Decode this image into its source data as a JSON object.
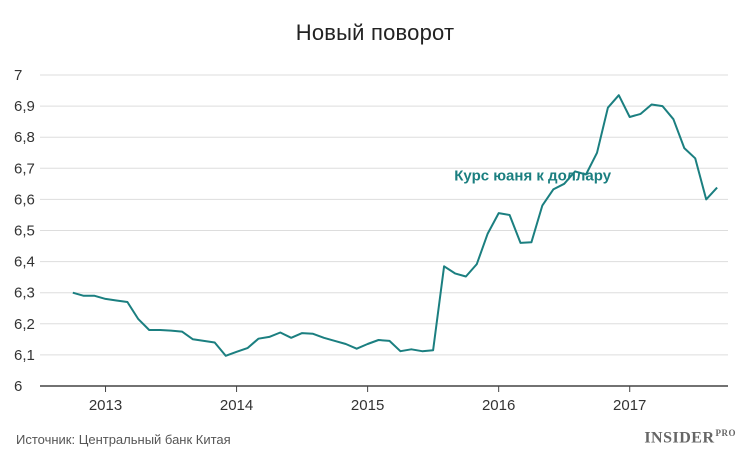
{
  "page": {
    "title": "Новый поворот",
    "source": "Источник: Центральный банк Китая",
    "logo_main": "INSIDER",
    "logo_sub": "PRO"
  },
  "colors": {
    "series": "#1b7f80",
    "axis": "#444444",
    "gridline": "#dddddd"
  },
  "chart_data": {
    "type": "line",
    "title": "Новый поворот",
    "xlabel": "",
    "ylabel": "",
    "ylim": [
      6,
      7
    ],
    "yticks": [
      6,
      6.1,
      6.2,
      6.3,
      6.4,
      6.5,
      6.6,
      6.7,
      6.8,
      6.9,
      7
    ],
    "ytick_labels": [
      "6",
      "6,1",
      "6,2",
      "6,3",
      "6,4",
      "6,5",
      "6,6",
      "6,7",
      "6,8",
      "6,9",
      "7"
    ],
    "xlim": [
      "2012-07",
      "2017-10"
    ],
    "xticks": [
      "2013",
      "2014",
      "2015",
      "2016",
      "2017"
    ],
    "grid": "horizontal",
    "series": [
      {
        "name": "Курс юаня к доллару",
        "x": [
          "2012-10",
          "2012-11",
          "2012-12",
          "2013-01",
          "2013-02",
          "2013-03",
          "2013-04",
          "2013-05",
          "2013-06",
          "2013-07",
          "2013-08",
          "2013-09",
          "2013-10",
          "2013-11",
          "2013-12",
          "2014-01",
          "2014-02",
          "2014-03",
          "2014-04",
          "2014-05",
          "2014-06",
          "2014-07",
          "2014-08",
          "2014-09",
          "2014-10",
          "2014-11",
          "2014-12",
          "2015-01",
          "2015-02",
          "2015-03",
          "2015-04",
          "2015-05",
          "2015-06",
          "2015-07",
          "2015-08",
          "2015-09",
          "2015-10",
          "2015-11",
          "2015-12",
          "2016-01",
          "2016-02",
          "2016-03",
          "2016-04",
          "2016-05",
          "2016-06",
          "2016-07",
          "2016-08",
          "2016-09",
          "2016-10",
          "2016-11",
          "2016-12",
          "2017-01",
          "2017-02",
          "2017-03",
          "2017-04",
          "2017-05",
          "2017-06",
          "2017-07",
          "2017-08",
          "2017-09"
        ],
        "values": [
          6.3,
          6.29,
          6.29,
          6.28,
          6.275,
          6.27,
          6.215,
          6.18,
          6.18,
          6.178,
          6.175,
          6.15,
          6.145,
          6.14,
          6.097,
          6.11,
          6.122,
          6.152,
          6.158,
          6.172,
          6.155,
          6.17,
          6.168,
          6.155,
          6.145,
          6.135,
          6.12,
          6.135,
          6.148,
          6.145,
          6.112,
          6.118,
          6.112,
          6.115,
          6.385,
          6.362,
          6.352,
          6.392,
          6.49,
          6.556,
          6.55,
          6.46,
          6.462,
          6.58,
          6.632,
          6.65,
          6.69,
          6.68,
          6.75,
          6.895,
          6.935,
          6.865,
          6.875,
          6.905,
          6.9,
          6.858,
          6.765,
          6.732,
          6.6,
          6.638
        ]
      }
    ]
  }
}
